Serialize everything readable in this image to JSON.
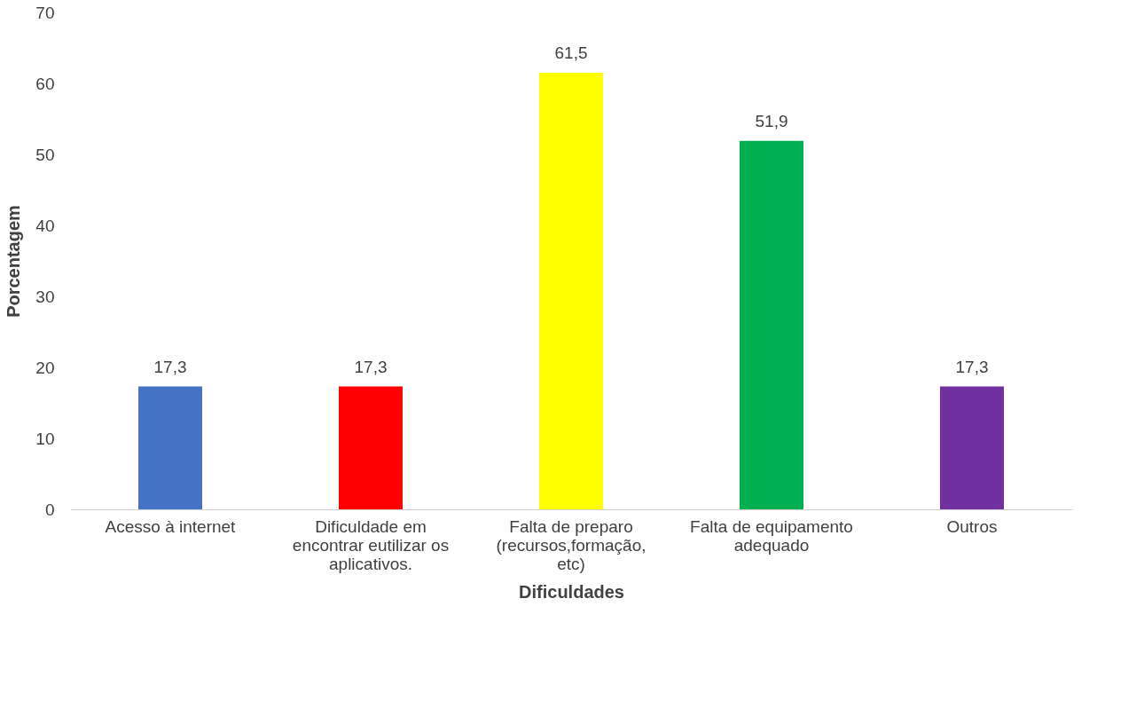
{
  "chart_data": {
    "type": "bar",
    "xlabel": "Dificuldades",
    "ylabel": "Porcentagem",
    "categories": [
      "Acesso à internet",
      "Dificuldade em encontrar eutilizar os aplicativos.",
      "Falta de preparo (recursos,formação, etc)",
      "Falta de equipamento adequado",
      "Outros"
    ],
    "values": [
      17.3,
      17.3,
      61.5,
      51.9,
      17.3
    ],
    "colors": [
      "#4472c4",
      "#ff0000",
      "#ffff00",
      "#00b050",
      "#7030a0"
    ],
    "ylim": [
      0,
      70
    ],
    "yticks": [
      0,
      10,
      20,
      30,
      40,
      50,
      60,
      70
    ],
    "value_labels": [
      "17,3",
      "17,3",
      "61,5",
      "51,9",
      "17,3"
    ],
    "grid": false
  }
}
